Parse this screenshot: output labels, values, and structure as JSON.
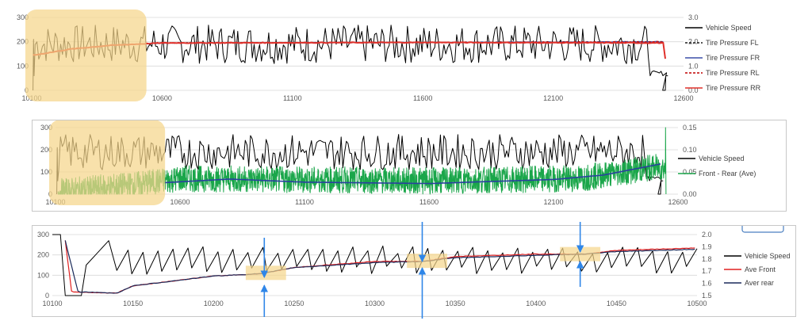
{
  "colors": {
    "vehicle_speed": "#000000",
    "tire_fl": "#1f1f1f",
    "tire_fr": "#3b4fa8",
    "tire_rl": "#c00000",
    "tire_rr": "#e0302a",
    "front_rear": "#1aa64a",
    "trend": "#2a3fa0",
    "ave_front": "#e02020",
    "aver_rear": "#1a2a5a",
    "highlight": "#f5d58a",
    "annotation_arrow": "#2f86e8"
  },
  "chart_data": [
    {
      "type": "line",
      "x_ticks": [
        "10100",
        "10600",
        "11100",
        "11600",
        "12100",
        "12600"
      ],
      "xlim": [
        10100,
        12600
      ],
      "ylim": [
        0,
        300
      ],
      "y_ticks": [
        "0",
        "100",
        "200",
        "300"
      ],
      "y2lim": [
        0.0,
        3.0
      ],
      "y2_ticks": [
        "0.0",
        "1.0",
        "2.0",
        "3.0"
      ],
      "legend_position": "right",
      "series": [
        {
          "name": "Vehicle Speed",
          "axis": "left",
          "pattern": "oscillating",
          "start": 10105,
          "end": 12540,
          "low": 110,
          "high": 270,
          "period": 28,
          "dropout_start": 12470,
          "dropout_level": 60
        },
        {
          "name": "Tire Pressure FL",
          "axis": "right",
          "dash": true,
          "start": 10105,
          "end": 12530,
          "values_at": [
            [
              10110,
              1.45
            ],
            [
              10250,
              1.7
            ],
            [
              10400,
              1.85
            ],
            [
              10600,
              1.95
            ],
            [
              11600,
              1.97
            ],
            [
              12500,
              2.0
            ]
          ]
        },
        {
          "name": "Tire Pressure FR",
          "axis": "right",
          "dash": false,
          "start": 10105,
          "end": 12530,
          "values_at": [
            [
              10110,
              1.45
            ],
            [
              10250,
              1.7
            ],
            [
              10400,
              1.85
            ],
            [
              10600,
              1.95
            ],
            [
              11600,
              1.97
            ],
            [
              12500,
              2.0
            ]
          ]
        },
        {
          "name": "Tire Pressure RL",
          "axis": "right",
          "dash": true,
          "start": 10105,
          "end": 12530,
          "values_at": [
            [
              10110,
              1.45
            ],
            [
              10250,
              1.7
            ],
            [
              10400,
              1.85
            ],
            [
              10600,
              1.95
            ],
            [
              11600,
              1.97
            ],
            [
              12500,
              2.0
            ]
          ]
        },
        {
          "name": "Tire Pressure RR",
          "axis": "right",
          "dash": false,
          "start": 10105,
          "end": 12530,
          "values_at": [
            [
              10110,
              1.45
            ],
            [
              10250,
              1.7
            ],
            [
              10400,
              1.85
            ],
            [
              10600,
              1.95
            ],
            [
              11600,
              1.97
            ],
            [
              12500,
              1.95
            ]
          ]
        }
      ],
      "highlight_region": [
        10100,
        10540
      ]
    },
    {
      "type": "line",
      "x_ticks": [
        "10100",
        "10600",
        "11100",
        "11600",
        "12100",
        "12600"
      ],
      "xlim": [
        10100,
        12600
      ],
      "ylim": [
        0,
        300
      ],
      "y_ticks": [
        "0",
        "100",
        "200",
        "300"
      ],
      "y2lim": [
        0.0,
        0.15
      ],
      "y2_ticks": [
        "0.00",
        "0.05",
        "0.10",
        "0.15"
      ],
      "legend_position": "right",
      "series": [
        {
          "name": "Vehicle Speed",
          "axis": "left",
          "pattern": "oscillating",
          "start": 10105,
          "end": 12540,
          "low": 110,
          "high": 270,
          "period": 28,
          "dropout_start": 12470,
          "dropout_level": 60
        },
        {
          "name": "Front - Rear (Ave)",
          "axis": "right",
          "pattern": "noise",
          "start": 10110,
          "end": 12550,
          "mean_at": [
            [
              10110,
              0.005
            ],
            [
              10400,
              0.02
            ],
            [
              10600,
              0.035
            ],
            [
              11600,
              0.03
            ],
            [
              12200,
              0.035
            ],
            [
              12500,
              0.06
            ]
          ],
          "amplitude": 0.03
        },
        {
          "name": "",
          "axis": "right",
          "pattern": "trend",
          "values_at": [
            [
              10540,
              0.026
            ],
            [
              10800,
              0.034
            ],
            [
              11100,
              0.027
            ],
            [
              11600,
              0.024
            ],
            [
              12100,
              0.033
            ],
            [
              12300,
              0.043
            ],
            [
              12530,
              0.068
            ]
          ]
        }
      ],
      "highlight_region": [
        10100,
        10540
      ]
    },
    {
      "type": "line",
      "x_ticks": [
        "10100",
        "10150",
        "10200",
        "10250",
        "10300",
        "10350",
        "10400",
        "10450",
        "10500"
      ],
      "xlim": [
        10100,
        10500
      ],
      "ylim": [
        0,
        300
      ],
      "y_ticks": [
        "0",
        "100",
        "200",
        "300"
      ],
      "y2lim": [
        1.5,
        2.0
      ],
      "y2_ticks": [
        "1.5",
        "1.6",
        "1.7",
        "1.8",
        "1.9",
        "2.0"
      ],
      "legend_position": "right",
      "series": [
        {
          "name": "Vehicle Speed",
          "axis": "left",
          "pattern": "sawtooth",
          "start": 10100,
          "end": 10500,
          "period": 9.3,
          "low": 115,
          "high": 215
        },
        {
          "name": "Ave Front",
          "axis": "right",
          "values_at": [
            [
              10108,
              1.95
            ],
            [
              10112,
              1.53
            ],
            [
              10140,
              1.52
            ],
            [
              10150,
              1.58
            ],
            [
              10200,
              1.66
            ],
            [
              10230,
              1.68
            ],
            [
              10250,
              1.73
            ],
            [
              10300,
              1.78
            ],
            [
              10330,
              1.78
            ],
            [
              10350,
              1.82
            ],
            [
              10400,
              1.84
            ],
            [
              10430,
              1.84
            ],
            [
              10450,
              1.87
            ],
            [
              10500,
              1.89
            ]
          ]
        },
        {
          "name": "Aver rear",
          "axis": "right",
          "values_at": [
            [
              10108,
              1.95
            ],
            [
              10116,
              1.53
            ],
            [
              10140,
              1.52
            ],
            [
              10150,
              1.58
            ],
            [
              10200,
              1.66
            ],
            [
              10230,
              1.68
            ],
            [
              10250,
              1.73
            ],
            [
              10300,
              1.77
            ],
            [
              10330,
              1.78
            ],
            [
              10350,
              1.81
            ],
            [
              10400,
              1.83
            ],
            [
              10430,
              1.84
            ],
            [
              10450,
              1.86
            ],
            [
              10500,
              1.88
            ]
          ]
        }
      ],
      "highlight_regions": [
        [
          10220,
          10245
        ],
        [
          10320,
          10345
        ],
        [
          10415,
          10440
        ]
      ],
      "annotation_arrows_at": [
        10232,
        10330,
        10428
      ]
    }
  ]
}
